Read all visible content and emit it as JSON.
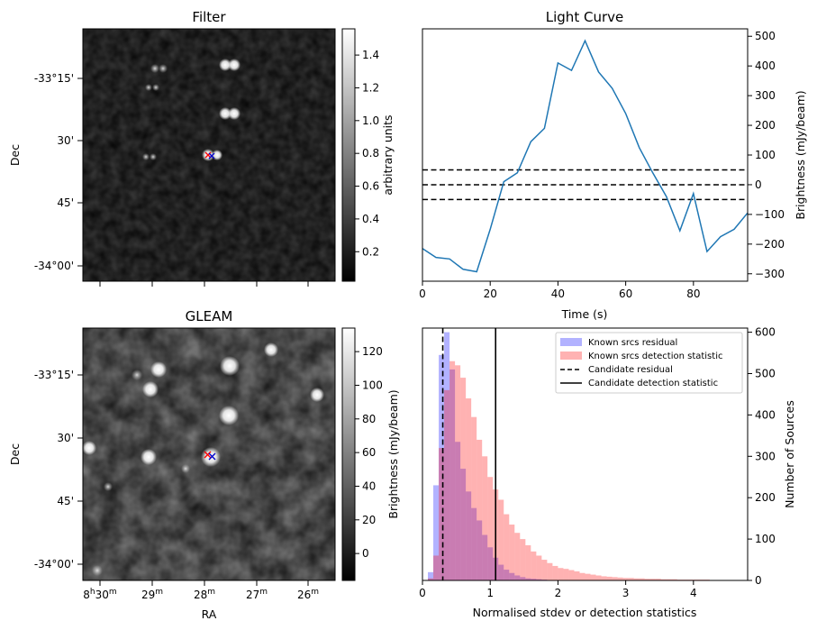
{
  "chart_data": [
    {
      "id": "filter",
      "type": "heatmap",
      "title": "Filter",
      "ylabel": "Dec",
      "y_ticks": [
        "-33°15'",
        "30'",
        "45'",
        "-34°00'"
      ],
      "colorbar": {
        "label": "arbitrary units",
        "range": [
          0.02,
          1.56
        ],
        "ticks": [
          0.2,
          0.4,
          0.6,
          0.8,
          1.0,
          1.2,
          1.4
        ]
      },
      "candidate_markers": [
        {
          "symbol": "x",
          "color": "#ff0000"
        },
        {
          "symbol": "x",
          "color": "#0000cc"
        }
      ]
    },
    {
      "id": "light_curve",
      "type": "line",
      "title": "Light Curve",
      "xlabel": "Time (s)",
      "ylabel": "Brightness (mJy/beam)",
      "xlim": [
        0,
        96
      ],
      "ylim": [
        -325,
        525
      ],
      "x_ticks": [
        0,
        20,
        40,
        60,
        80
      ],
      "y_ticks": [
        -300,
        -200,
        -100,
        0,
        100,
        200,
        300,
        400,
        500
      ],
      "x": [
        0,
        4,
        8,
        12,
        16,
        20,
        24,
        28,
        32,
        36,
        40,
        44,
        48,
        52,
        56,
        60,
        64,
        68,
        72,
        76,
        80,
        84,
        88,
        92,
        96
      ],
      "y": [
        -215,
        -245,
        -250,
        -285,
        -293,
        -150,
        10,
        40,
        145,
        190,
        410,
        385,
        485,
        380,
        325,
        240,
        125,
        40,
        -40,
        -155,
        -30,
        -225,
        -175,
        -150,
        -95
      ],
      "color": "#1f77b4",
      "hlines": [
        50,
        0,
        -50
      ],
      "hline_style": "dashed"
    },
    {
      "id": "gleam",
      "type": "heatmap",
      "title": "GLEAM",
      "xlabel": "RA",
      "ylabel": "Dec",
      "x_ticks": [
        {
          "pre": "8",
          "sup1": "h",
          "mid": "30",
          "sup2": "m"
        },
        {
          "pre": "",
          "sup1": "",
          "mid": "29",
          "sup2": "m"
        },
        {
          "pre": "",
          "sup1": "",
          "mid": "28",
          "sup2": "m"
        },
        {
          "pre": "",
          "sup1": "",
          "mid": "27",
          "sup2": "m"
        },
        {
          "pre": "",
          "sup1": "",
          "mid": "26",
          "sup2": "m"
        }
      ],
      "y_ticks": [
        "-33°15'",
        "30'",
        "45'",
        "-34°00'"
      ],
      "colorbar": {
        "label": "Brightness (mJy/beam)",
        "range": [
          -16,
          134
        ],
        "ticks": [
          0,
          20,
          40,
          60,
          80,
          100,
          120
        ]
      },
      "candidate_markers": [
        {
          "symbol": "x",
          "color": "#ff0000"
        },
        {
          "symbol": "x",
          "color": "#0000cc"
        }
      ]
    },
    {
      "id": "histogram",
      "type": "bar",
      "xlabel": "Normalised stdev or detection statistics",
      "ylabel": "Number of Sources",
      "xlim": [
        0,
        4.8
      ],
      "ylim": [
        0,
        610
      ],
      "x_ticks": [
        0,
        1,
        2,
        3,
        4
      ],
      "y_ticks": [
        0,
        100,
        200,
        300,
        400,
        500,
        600
      ],
      "bin_start": 0,
      "bin_width": 0.08,
      "series": [
        {
          "name": "Known srcs residual",
          "color": "#0000ff",
          "opacity": 0.3,
          "values": [
            0,
            20,
            230,
            545,
            600,
            510,
            335,
            270,
            215,
            175,
            145,
            110,
            80,
            55,
            38,
            26,
            18,
            12,
            8,
            5,
            4,
            3,
            2,
            1,
            1
          ]
        },
        {
          "name": "Known srcs detection statistic",
          "color": "#ff0000",
          "opacity": 0.3,
          "values": [
            0,
            5,
            60,
            320,
            460,
            530,
            520,
            490,
            440,
            395,
            340,
            300,
            250,
            220,
            195,
            160,
            135,
            115,
            100,
            85,
            70,
            60,
            50,
            42,
            35,
            30,
            28,
            25,
            22,
            18,
            16,
            14,
            12,
            10,
            9,
            8,
            7,
            6,
            6,
            5,
            5,
            4,
            4,
            4,
            3,
            3,
            3,
            2,
            2,
            2,
            2,
            2,
            2,
            1,
            1,
            1,
            1,
            1
          ]
        }
      ],
      "vlines": [
        {
          "name": "Candidate residual",
          "x": 0.3,
          "style": "dashed"
        },
        {
          "name": "Candidate detection statistic",
          "x": 1.08,
          "style": "solid"
        }
      ],
      "legend": "top-right"
    }
  ]
}
